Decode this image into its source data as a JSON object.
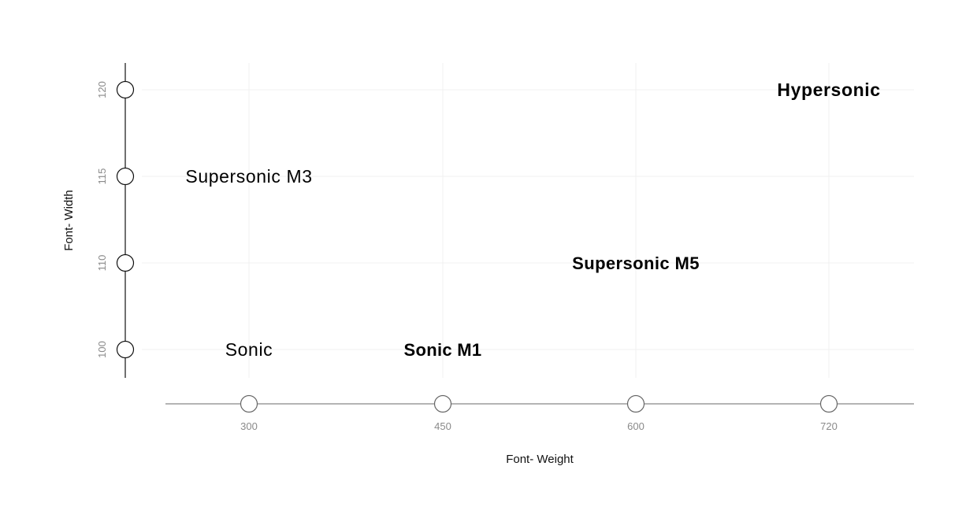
{
  "chart_data": {
    "type": "scatter",
    "title": "",
    "xlabel": "Font- Weight",
    "ylabel": "Font- Width",
    "xticks": [
      300,
      450,
      600,
      720
    ],
    "yticks": [
      100,
      110,
      115,
      120
    ],
    "grid": true,
    "points": [
      {
        "label": "Sonic",
        "x": 300,
        "y": 100,
        "weight": "light"
      },
      {
        "label": "Sonic M1",
        "x": 450,
        "y": 100,
        "weight": "semibold"
      },
      {
        "label": "Supersonic M3",
        "x": 300,
        "y": 115,
        "weight": "light"
      },
      {
        "label": "Supersonic M5",
        "x": 600,
        "y": 110,
        "weight": "bold"
      },
      {
        "label": "Hypersonic",
        "x": 720,
        "y": 120,
        "weight": "heavy"
      }
    ]
  },
  "colors": {
    "axis": "#111111",
    "x_axis_line": "#888888",
    "grid": "#f0f0f0",
    "tick_label": "#8a8a8a",
    "label": "#000000"
  }
}
